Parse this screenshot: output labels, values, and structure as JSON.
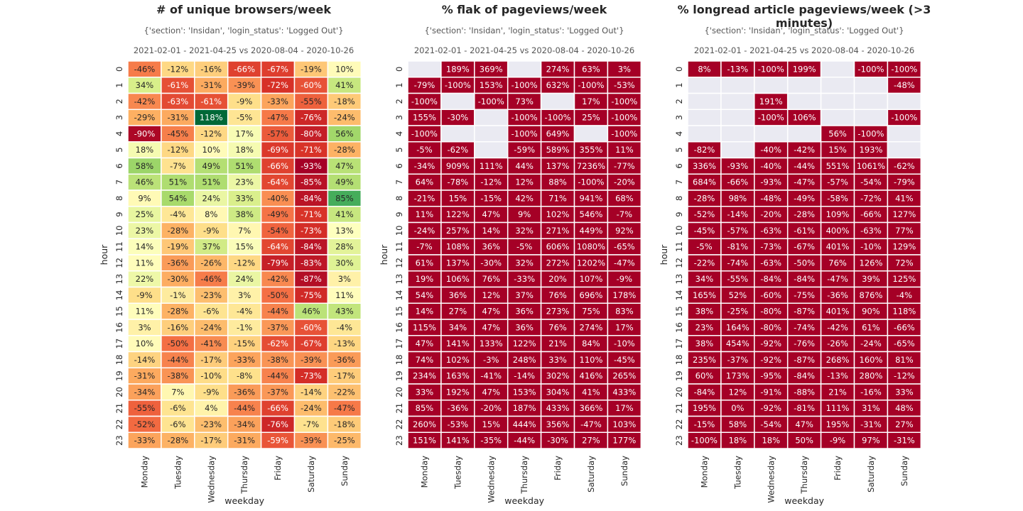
{
  "chart_data": [
    {
      "type": "heatmap",
      "title": "# of unique browsers/week",
      "subtitle": "{'section': 'Insidan', 'login_status': 'Logged Out'}",
      "period": "2021-02-01 - 2021-04-25 vs 2020-08-04 - 2020-10-26",
      "xlabel": "weekday",
      "ylabel": "hour",
      "colormap": "RdYlGn",
      "cells": [
        [
          "-46%",
          "-12%",
          "-16%",
          "-66%",
          "-67%",
          "-19%",
          "10%"
        ],
        [
          "34%",
          "-61%",
          "-31%",
          "-39%",
          "-72%",
          "-60%",
          "41%"
        ],
        [
          "-42%",
          "-63%",
          "-61%",
          "-9%",
          "-33%",
          "-55%",
          "-18%"
        ],
        [
          "-29%",
          "-31%",
          "118%",
          "-5%",
          "-47%",
          "-76%",
          "-24%"
        ],
        [
          "-90%",
          "-45%",
          "-12%",
          "17%",
          "-57%",
          "-80%",
          "56%"
        ],
        [
          "18%",
          "-12%",
          "10%",
          "18%",
          "-69%",
          "-71%",
          "-28%"
        ],
        [
          "58%",
          "-7%",
          "49%",
          "51%",
          "-66%",
          "-93%",
          "47%"
        ],
        [
          "46%",
          "51%",
          "51%",
          "23%",
          "-64%",
          "-85%",
          "49%"
        ],
        [
          "9%",
          "54%",
          "24%",
          "33%",
          "-40%",
          "-84%",
          "85%"
        ],
        [
          "25%",
          "-4%",
          "8%",
          "38%",
          "-49%",
          "-71%",
          "41%"
        ],
        [
          "23%",
          "-28%",
          "-9%",
          "7%",
          "-54%",
          "-73%",
          "13%"
        ],
        [
          "14%",
          "-19%",
          "37%",
          "15%",
          "-64%",
          "-84%",
          "28%"
        ],
        [
          "11%",
          "-36%",
          "-26%",
          "-12%",
          "-79%",
          "-83%",
          "30%"
        ],
        [
          "22%",
          "-30%",
          "-46%",
          "24%",
          "-42%",
          "-87%",
          "3%"
        ],
        [
          "-9%",
          "-1%",
          "-23%",
          "3%",
          "-50%",
          "-75%",
          "11%"
        ],
        [
          "11%",
          "-28%",
          "-6%",
          "-4%",
          "-44%",
          "46%",
          "43%"
        ],
        [
          "3%",
          "-16%",
          "-24%",
          "-1%",
          "-37%",
          "-60%",
          "-4%"
        ],
        [
          "10%",
          "-50%",
          "-41%",
          "-15%",
          "-62%",
          "-67%",
          "-13%"
        ],
        [
          "-14%",
          "-44%",
          "-17%",
          "-33%",
          "-38%",
          "-39%",
          "-36%"
        ],
        [
          "-31%",
          "-38%",
          "-10%",
          "-8%",
          "-44%",
          "-73%",
          "-17%"
        ],
        [
          "-34%",
          "7%",
          "-9%",
          "-36%",
          "-37%",
          "-14%",
          "-22%"
        ],
        [
          "-55%",
          "-6%",
          "4%",
          "-44%",
          "-66%",
          "-24%",
          "-47%"
        ],
        [
          "-52%",
          "-6%",
          "-23%",
          "-34%",
          "-76%",
          "-7%",
          "-18%"
        ],
        [
          "-33%",
          "-28%",
          "-17%",
          "-31%",
          "-59%",
          "-39%",
          "-25%"
        ]
      ]
    },
    {
      "type": "heatmap",
      "title": "% flak of pageviews/week",
      "subtitle": "{'section': 'Insidan', 'login_status': 'Logged Out'}",
      "period": "2021-02-01 - 2021-04-25 vs 2020-08-04 - 2020-10-26",
      "xlabel": "weekday",
      "ylabel": "hour",
      "colormap": "RdYlGn",
      "cells": [
        [
          "",
          "189%",
          "369%",
          "",
          "274%",
          "63%",
          "3%"
        ],
        [
          "-79%",
          "-100%",
          "153%",
          "-100%",
          "632%",
          "-100%",
          "-53%"
        ],
        [
          "-100%",
          "",
          "-100%",
          "73%",
          "",
          "17%",
          "-100%"
        ],
        [
          "155%",
          "-30%",
          "",
          "-100%",
          "-100%",
          "25%",
          "-100%"
        ],
        [
          "-100%",
          "",
          "",
          "-100%",
          "649%",
          "",
          "-100%"
        ],
        [
          "-5%",
          "-62%",
          "",
          "-59%",
          "589%",
          "355%",
          "11%"
        ],
        [
          "-34%",
          "909%",
          "111%",
          "44%",
          "137%",
          "7236%",
          "-77%"
        ],
        [
          "64%",
          "-78%",
          "-12%",
          "12%",
          "88%",
          "-100%",
          "-20%"
        ],
        [
          "-21%",
          "15%",
          "-15%",
          "42%",
          "71%",
          "941%",
          "68%"
        ],
        [
          "11%",
          "122%",
          "47%",
          "9%",
          "102%",
          "546%",
          "-7%"
        ],
        [
          "-24%",
          "257%",
          "14%",
          "32%",
          "271%",
          "449%",
          "92%"
        ],
        [
          "-7%",
          "108%",
          "36%",
          "-5%",
          "606%",
          "1080%",
          "-65%"
        ],
        [
          "61%",
          "137%",
          "-30%",
          "32%",
          "272%",
          "1202%",
          "-47%"
        ],
        [
          "19%",
          "106%",
          "76%",
          "-33%",
          "20%",
          "107%",
          "-9%"
        ],
        [
          "54%",
          "36%",
          "12%",
          "37%",
          "76%",
          "696%",
          "178%"
        ],
        [
          "14%",
          "27%",
          "47%",
          "36%",
          "273%",
          "75%",
          "83%"
        ],
        [
          "115%",
          "34%",
          "47%",
          "36%",
          "76%",
          "274%",
          "17%"
        ],
        [
          "47%",
          "141%",
          "133%",
          "122%",
          "21%",
          "84%",
          "-10%"
        ],
        [
          "74%",
          "102%",
          "-3%",
          "248%",
          "33%",
          "110%",
          "-45%"
        ],
        [
          "234%",
          "163%",
          "-41%",
          "-14%",
          "302%",
          "416%",
          "265%"
        ],
        [
          "33%",
          "192%",
          "47%",
          "153%",
          "304%",
          "41%",
          "433%"
        ],
        [
          "85%",
          "-36%",
          "-20%",
          "187%",
          "433%",
          "366%",
          "17%"
        ],
        [
          "260%",
          "-53%",
          "15%",
          "444%",
          "356%",
          "-47%",
          "103%"
        ],
        [
          "151%",
          "141%",
          "-35%",
          "-44%",
          "-30%",
          "27%",
          "177%"
        ]
      ]
    },
    {
      "type": "heatmap",
      "title": "% longread article pageviews/week (>3 minutes)",
      "subtitle": "{'section': 'Insidan', 'login_status': 'Logged Out'}",
      "period": "2021-02-01 - 2021-04-25 vs 2020-08-04 - 2020-10-26",
      "xlabel": "weekday",
      "ylabel": "hour",
      "colormap": "RdYlGn",
      "cells": [
        [
          "8%",
          "-13%",
          "-100%",
          "199%",
          "",
          "-100%",
          "-100%"
        ],
        [
          "",
          "",
          "",
          "",
          "",
          "",
          "-48%"
        ],
        [
          "",
          "",
          "191%",
          "",
          "",
          "",
          ""
        ],
        [
          "",
          "",
          "-100%",
          "106%",
          "",
          "",
          "-100%"
        ],
        [
          "",
          "",
          "",
          "",
          "56%",
          "-100%",
          ""
        ],
        [
          "-82%",
          "",
          "-40%",
          "-42%",
          "15%",
          "193%",
          ""
        ],
        [
          "336%",
          "-93%",
          "-40%",
          "-44%",
          "551%",
          "1061%",
          "-62%"
        ],
        [
          "684%",
          "-66%",
          "-93%",
          "-47%",
          "-57%",
          "-54%",
          "-79%"
        ],
        [
          "-28%",
          "98%",
          "-48%",
          "-49%",
          "-58%",
          "-72%",
          "41%"
        ],
        [
          "-52%",
          "-14%",
          "-20%",
          "-28%",
          "109%",
          "-66%",
          "127%"
        ],
        [
          "-45%",
          "-57%",
          "-63%",
          "-61%",
          "400%",
          "-63%",
          "77%"
        ],
        [
          "-5%",
          "-81%",
          "-73%",
          "-67%",
          "401%",
          "-10%",
          "129%"
        ],
        [
          "-22%",
          "-74%",
          "-63%",
          "-50%",
          "76%",
          "126%",
          "72%"
        ],
        [
          "34%",
          "-55%",
          "-84%",
          "-84%",
          "-47%",
          "39%",
          "125%"
        ],
        [
          "165%",
          "52%",
          "-60%",
          "-75%",
          "-36%",
          "876%",
          "-4%"
        ],
        [
          "38%",
          "-25%",
          "-80%",
          "-87%",
          "401%",
          "90%",
          "118%"
        ],
        [
          "23%",
          "164%",
          "-80%",
          "-74%",
          "-42%",
          "61%",
          "-66%"
        ],
        [
          "38%",
          "454%",
          "-92%",
          "-76%",
          "-26%",
          "-24%",
          "-65%"
        ],
        [
          "235%",
          "-37%",
          "-92%",
          "-87%",
          "268%",
          "160%",
          "81%"
        ],
        [
          "60%",
          "173%",
          "-95%",
          "-84%",
          "-13%",
          "280%",
          "-12%"
        ],
        [
          "-84%",
          "12%",
          "-91%",
          "-88%",
          "21%",
          "-16%",
          "33%"
        ],
        [
          "195%",
          "0%",
          "-92%",
          "-81%",
          "111%",
          "31%",
          "48%"
        ],
        [
          "-15%",
          "58%",
          "-54%",
          "47%",
          "195%",
          "-31%",
          "27%"
        ],
        [
          "-100%",
          "18%",
          "18%",
          "50%",
          "-9%",
          "97%",
          "-31%"
        ]
      ]
    }
  ],
  "weekdays": [
    "Monday",
    "Tuesday",
    "Wednesday",
    "Thursday",
    "Friday",
    "Saturday",
    "Sunday"
  ],
  "hours": [
    "0",
    "1",
    "2",
    "3",
    "4",
    "5",
    "6",
    "7",
    "8",
    "9",
    "10",
    "11",
    "12",
    "13",
    "14",
    "15",
    "16",
    "17",
    "18",
    "19",
    "20",
    "21",
    "22",
    "23"
  ],
  "colors": {
    "missing": "#eaeaf2",
    "grid": "#ffffff",
    "saturated_high": "#a50026"
  }
}
